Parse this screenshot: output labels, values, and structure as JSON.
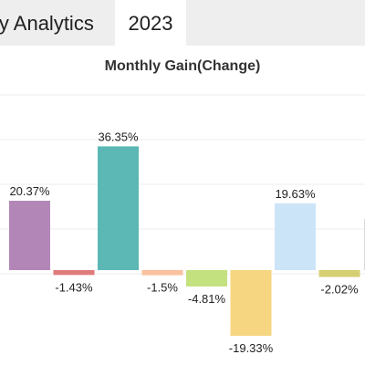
{
  "tabs": [
    {
      "label": "ly Analytics"
    },
    {
      "label": "2023"
    }
  ],
  "chart_data": {
    "type": "bar",
    "title": "Monthly Gain(Change)",
    "xlabel": "",
    "ylabel": "",
    "grid": true,
    "legend": "none",
    "ylim": [
      -25,
      40
    ],
    "values": [
      20.37,
      -1.43,
      36.35,
      -1.5,
      -4.81,
      -19.33,
      19.63,
      -2.02
    ],
    "labels": [
      "20.37%",
      "-1.43%",
      "36.35%",
      "-1.5%",
      "-4.81%",
      "-19.33%",
      "19.63%",
      "-2.02%"
    ],
    "colors": [
      "#b287b8",
      "#e07b7b",
      "#5bb8b4",
      "#f9c19f",
      "#c4e17f",
      "#f6d680",
      "#cce4f8",
      "#d6cf72"
    ]
  }
}
